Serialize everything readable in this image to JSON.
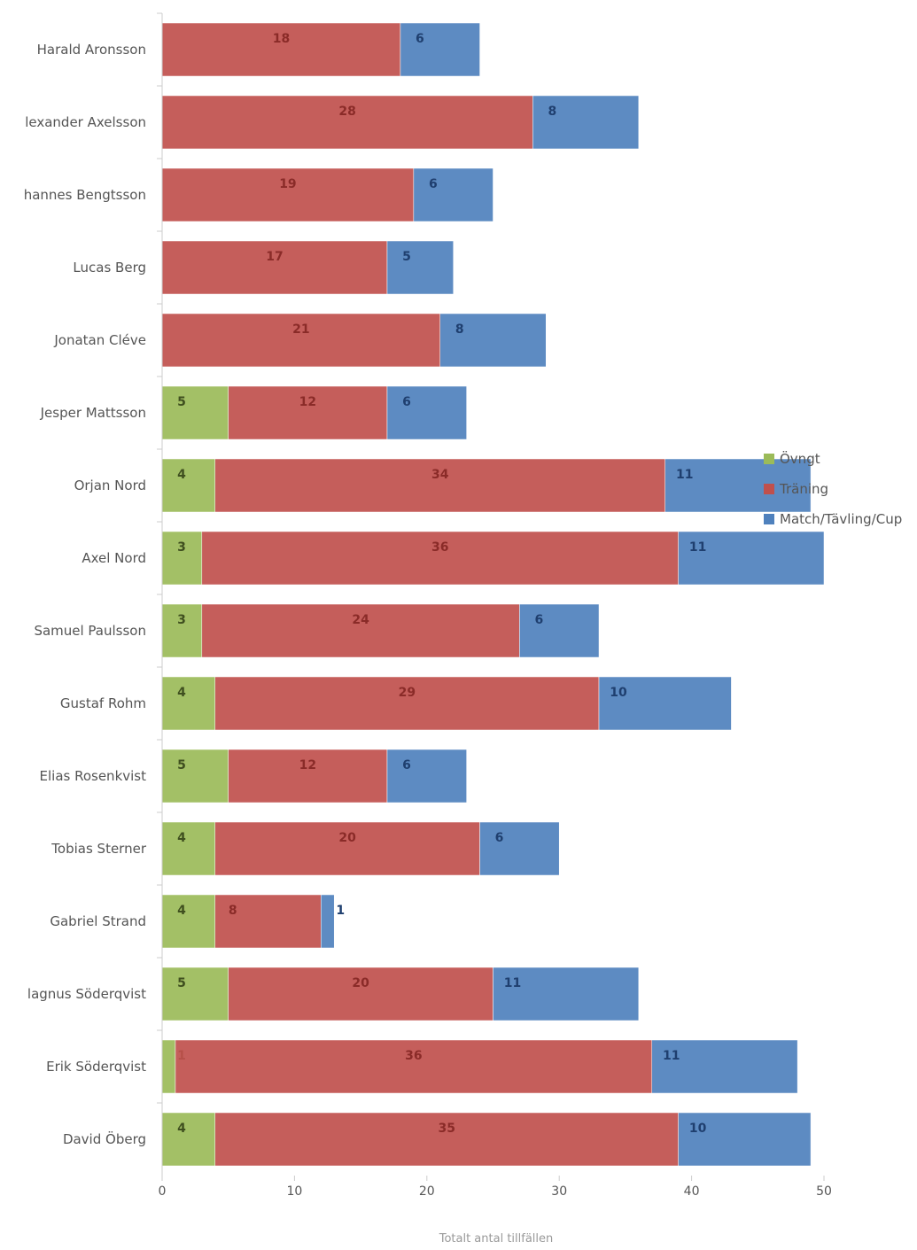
{
  "chart_data": {
    "type": "bar",
    "orientation": "horizontal",
    "stacked": true,
    "categories": [
      "Harald Aronsson",
      "lexander Axelsson",
      "hannes Bengtsson",
      "Lucas Berg",
      "Jonatan Cléve",
      "Jesper Mattsson",
      "Orjan Nord",
      "Axel Nord",
      "Samuel Paulsson",
      "Gustaf Rohm",
      "Elias Rosenkvist",
      "Tobias Sterner",
      "Gabriel Strand",
      "lagnus Söderqvist",
      "Erik Söderqvist",
      "David Öberg"
    ],
    "series": [
      {
        "name": "Övngt",
        "color": "#9bbb59",
        "values": [
          0,
          0,
          0,
          0,
          0,
          5,
          4,
          3,
          3,
          4,
          5,
          4,
          4,
          5,
          1,
          4
        ]
      },
      {
        "name": "Träning",
        "color": "#c0504d",
        "values": [
          18,
          28,
          19,
          17,
          21,
          12,
          34,
          36,
          24,
          29,
          12,
          20,
          8,
          20,
          36,
          35
        ]
      },
      {
        "name": "Match/Tävling/Cup",
        "color": "#4f81bd",
        "values": [
          6,
          8,
          6,
          5,
          8,
          6,
          11,
          11,
          6,
          10,
          6,
          6,
          1,
          11,
          11,
          10
        ]
      }
    ],
    "xlim": [
      0,
      50
    ],
    "x_ticks": [
      "0",
      "10",
      "20",
      "30",
      "40",
      "50"
    ],
    "xlabel": "Totalt antal tillfällen",
    "ylabel": "",
    "title": "",
    "legend": "right",
    "grid": false
  }
}
